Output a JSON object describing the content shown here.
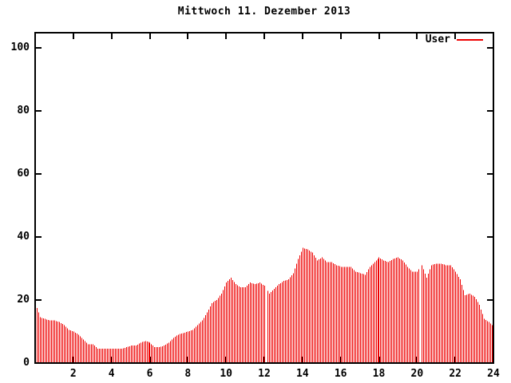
{
  "title": "Mittwoch 11. Dezember 2013",
  "legend": {
    "label": "User",
    "color": "#ee0000"
  },
  "chart_data": {
    "type": "bar",
    "title": "Mittwoch 11. Dezember 2013",
    "xlabel": "",
    "ylabel": "",
    "xlim": [
      0,
      24
    ],
    "ylim": [
      0,
      100
    ],
    "xticks": [
      2,
      4,
      6,
      8,
      10,
      12,
      14,
      16,
      18,
      20,
      22,
      24
    ],
    "yticks": [
      0,
      20,
      40,
      60,
      80,
      100
    ],
    "grid": false,
    "legend_position": "top-right-inside",
    "tick_style": "inward-mirrored",
    "render_step_hours": 0.0833333,
    "gaps_hours": [
      12.0833,
      20.1667
    ],
    "series": [
      {
        "name": "User",
        "color": "#ee0000",
        "x_start": 0,
        "x_step_hours": 0.25,
        "values": [
          19,
          14.5,
          14,
          13.5,
          13.5,
          13,
          12,
          10.5,
          10,
          9,
          7.5,
          6,
          6,
          4.5,
          4.5,
          4.5,
          4.5,
          4.5,
          4.5,
          5,
          5.5,
          5.5,
          6.5,
          7,
          6.5,
          5,
          5,
          5.5,
          6.5,
          8,
          9,
          9.5,
          10,
          10.5,
          12,
          13.5,
          16,
          19,
          20,
          22,
          25.5,
          27,
          25,
          24,
          24,
          25.5,
          25,
          25.5,
          24.5,
          22,
          23.5,
          25,
          26,
          26.5,
          28.5,
          33,
          36.5,
          36,
          35,
          32.5,
          33.5,
          32,
          32,
          31,
          30.5,
          30.5,
          30.5,
          29,
          28.5,
          28,
          30.5,
          32,
          33.5,
          32.5,
          32,
          33,
          33.5,
          32.5,
          30.5,
          29,
          29,
          31,
          27,
          31,
          31.5,
          31.5,
          31,
          31,
          29,
          26.5,
          21.5,
          22,
          21,
          18.5,
          14,
          13,
          11.5
        ]
      }
    ]
  }
}
